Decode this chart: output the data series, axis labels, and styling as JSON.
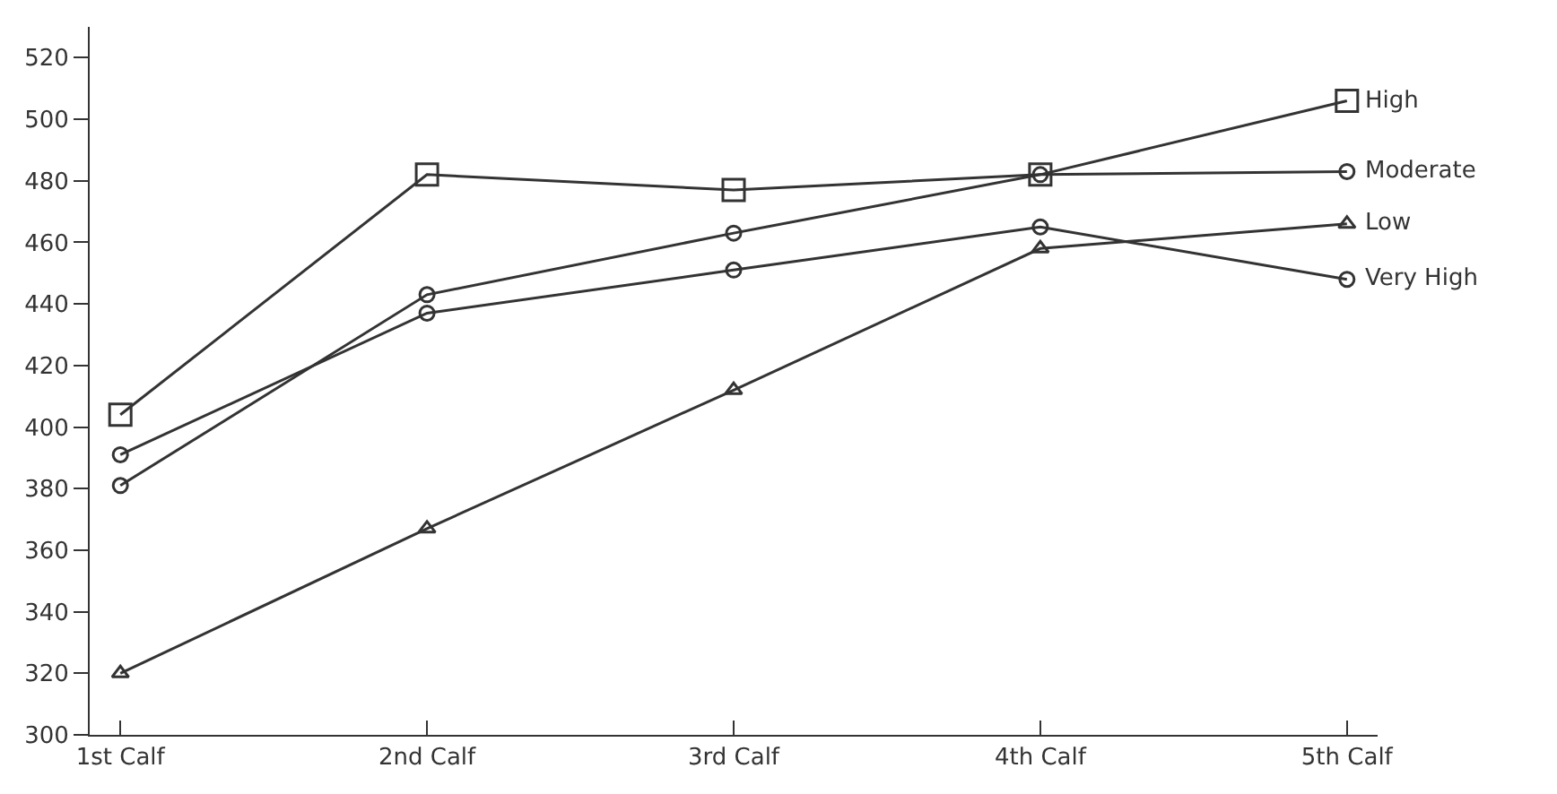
{
  "chart_data": {
    "type": "line",
    "categories": [
      "1st Calf",
      "2nd Calf",
      "3rd Calf",
      "4th Calf",
      "5th Calf"
    ],
    "series": [
      {
        "name": "High",
        "color": "#333333",
        "marker": "square",
        "values": [
          404,
          482,
          477,
          482,
          506
        ]
      },
      {
        "name": "Moderate",
        "color": "#333333",
        "marker": "circle",
        "values": [
          381,
          443,
          463,
          482,
          483
        ]
      },
      {
        "name": "Low",
        "color": "#333333",
        "marker": "triangle",
        "values": [
          320,
          367,
          412,
          458,
          466
        ]
      },
      {
        "name": "Very High",
        "color": "#333333",
        "marker": "circle",
        "values": [
          391,
          437,
          451,
          465,
          448
        ]
      }
    ],
    "ylim": [
      300,
      530
    ],
    "yticks": [
      300,
      320,
      340,
      360,
      380,
      400,
      420,
      440,
      460,
      480,
      500,
      520
    ],
    "legend": false,
    "line_style": "solid"
  }
}
